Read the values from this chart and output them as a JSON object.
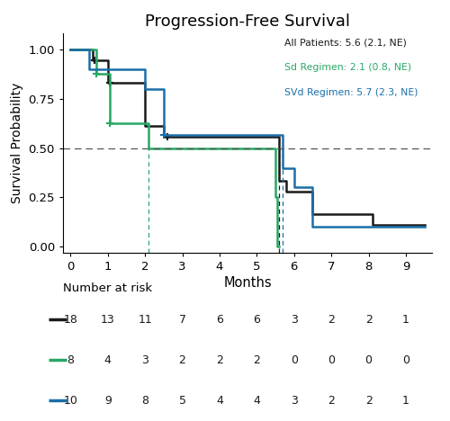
{
  "title": "Progression-Free Survival",
  "xlabel": "Months",
  "ylabel": "Survival Probability",
  "xlim": [
    -0.2,
    9.7
  ],
  "ylim": [
    -0.03,
    1.08
  ],
  "xticks": [
    0,
    1,
    2,
    3,
    4,
    5,
    6,
    7,
    8,
    9
  ],
  "yticks": [
    0.0,
    0.25,
    0.5,
    0.75,
    1.0
  ],
  "dashed_line_y": 0.5,
  "legend_text": [
    "All Patients: 5.6 (2.1, NE)",
    "Sd Regimen: 2.1 (0.8, NE)",
    "SVd Regimen: 5.7 (2.3, NE)"
  ],
  "legend_colors": [
    "#1a1a1a",
    "#27a864",
    "#1a6fa8"
  ],
  "colors": {
    "all": "#1a1a1a",
    "sd": "#27a864",
    "svd": "#1a6fa8"
  },
  "km_all": {
    "times": [
      0,
      0.6,
      0.6,
      1.0,
      1.0,
      2.0,
      2.0,
      2.5,
      2.5,
      5.6,
      5.6,
      5.8,
      5.8,
      6.5,
      6.5,
      8.1,
      8.1,
      9.5
    ],
    "surv": [
      1.0,
      1.0,
      0.944,
      0.944,
      0.833,
      0.833,
      0.611,
      0.611,
      0.556,
      0.556,
      0.333,
      0.333,
      0.278,
      0.278,
      0.167,
      0.167,
      0.111,
      0.111
    ],
    "censor_times": [
      0.65,
      1.05,
      2.6
    ],
    "censor_surv": [
      0.944,
      0.833,
      0.556
    ]
  },
  "km_sd": {
    "times": [
      0,
      0.7,
      0.7,
      1.05,
      1.05,
      2.1,
      2.1,
      5.5,
      5.5,
      5.55,
      5.55,
      5.6
    ],
    "surv": [
      1.0,
      1.0,
      0.875,
      0.875,
      0.625,
      0.625,
      0.5,
      0.5,
      0.25,
      0.25,
      0.0,
      0.0
    ],
    "censor_times": [
      0.7,
      1.05
    ],
    "censor_surv": [
      0.875,
      0.625
    ]
  },
  "km_svd": {
    "times": [
      0,
      0.5,
      0.5,
      2.0,
      2.0,
      2.5,
      2.5,
      5.7,
      5.7,
      6.0,
      6.0,
      6.5,
      6.5,
      8.3,
      8.3,
      9.5
    ],
    "surv": [
      1.0,
      1.0,
      0.9,
      0.9,
      0.8,
      0.8,
      0.567,
      0.567,
      0.4,
      0.4,
      0.3,
      0.3,
      0.1,
      0.1,
      0.1,
      0.1
    ],
    "censor_times": [
      2.5
    ],
    "censor_surv": [
      0.567
    ]
  },
  "median_vlines": [
    {
      "x": 2.1,
      "color": "#27a864"
    },
    {
      "x": 5.6,
      "color": "#1a1a1a"
    },
    {
      "x": 5.7,
      "color": "#1a6fa8"
    }
  ],
  "risk_table": {
    "title": "Number at risk",
    "times": [
      0,
      1,
      2,
      3,
      4,
      5,
      6,
      7,
      8,
      9
    ],
    "all": [
      18,
      13,
      11,
      7,
      6,
      6,
      3,
      2,
      2,
      1
    ],
    "sd": [
      8,
      4,
      3,
      2,
      2,
      2,
      0,
      0,
      0,
      0
    ],
    "svd": [
      10,
      9,
      8,
      5,
      4,
      4,
      3,
      2,
      2,
      1
    ]
  },
  "background_color": "#ffffff"
}
